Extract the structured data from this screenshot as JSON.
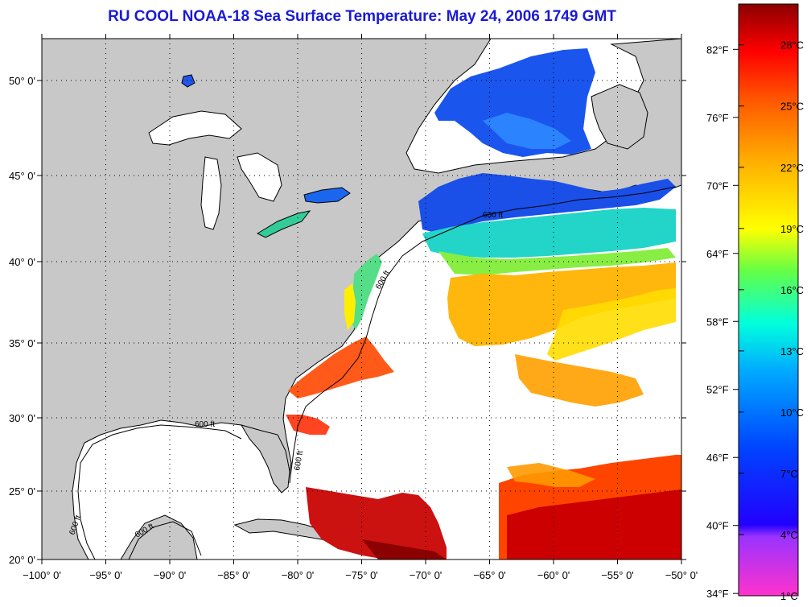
{
  "title": "RU COOL  NOAA-18  Sea Surface Temperature:  May 24, 2006 1749 GMT",
  "map": {
    "lon_range": [
      -100,
      -50
    ],
    "lat_range": [
      20,
      52.5
    ],
    "lon_ticks": [
      {
        "value": -100,
        "label": "−100° 0'"
      },
      {
        "value": -95,
        "label": "−95° 0'"
      },
      {
        "value": -90,
        "label": "−90° 0'"
      },
      {
        "value": -85,
        "label": "−85° 0'"
      },
      {
        "value": -80,
        "label": "−80° 0'"
      },
      {
        "value": -75,
        "label": "−75° 0'"
      },
      {
        "value": -70,
        "label": "−70° 0'"
      },
      {
        "value": -65,
        "label": "−65° 0'"
      },
      {
        "value": -60,
        "label": "−60° 0'"
      },
      {
        "value": -55,
        "label": "−55° 0'"
      },
      {
        "value": -50,
        "label": "−50° 0'"
      }
    ],
    "lat_ticks": [
      {
        "value": 20,
        "label": "20° 0'"
      },
      {
        "value": 25,
        "label": "25° 0'"
      },
      {
        "value": 30,
        "label": "30° 0'"
      },
      {
        "value": 35,
        "label": "35° 0'"
      },
      {
        "value": 40,
        "label": "40° 0'"
      },
      {
        "value": 45,
        "label": "45° 0'"
      },
      {
        "value": 50,
        "label": "50° 0'"
      }
    ],
    "isobath_labels": [
      "600 ft",
      "600 ft",
      "600 ft",
      "600 ft",
      "600 ft",
      "600 ft"
    ],
    "colors": {
      "land": "#c8c8c8",
      "no_data": "#ffffff",
      "grid": "#000000"
    }
  },
  "colorbar": {
    "min_c": 1,
    "max_c": 30,
    "fahrenheit_labels": [
      "82°F",
      "76°F",
      "70°F",
      "64°F",
      "58°F",
      "52°F",
      "46°F",
      "40°F",
      "34°F"
    ],
    "celsius_labels": [
      "28°C",
      "25°C",
      "22°C",
      "19°C",
      "16°C",
      "13°C",
      "10°C",
      "7°C",
      "4°C",
      "1°C"
    ],
    "colors": [
      "#ff33cc",
      "#9933ff",
      "#0000ff",
      "#0066ff",
      "#00ccff",
      "#00ffcc",
      "#66ff33",
      "#ffff00",
      "#ffaa00",
      "#ff5500",
      "#ff0000",
      "#990000"
    ]
  }
}
